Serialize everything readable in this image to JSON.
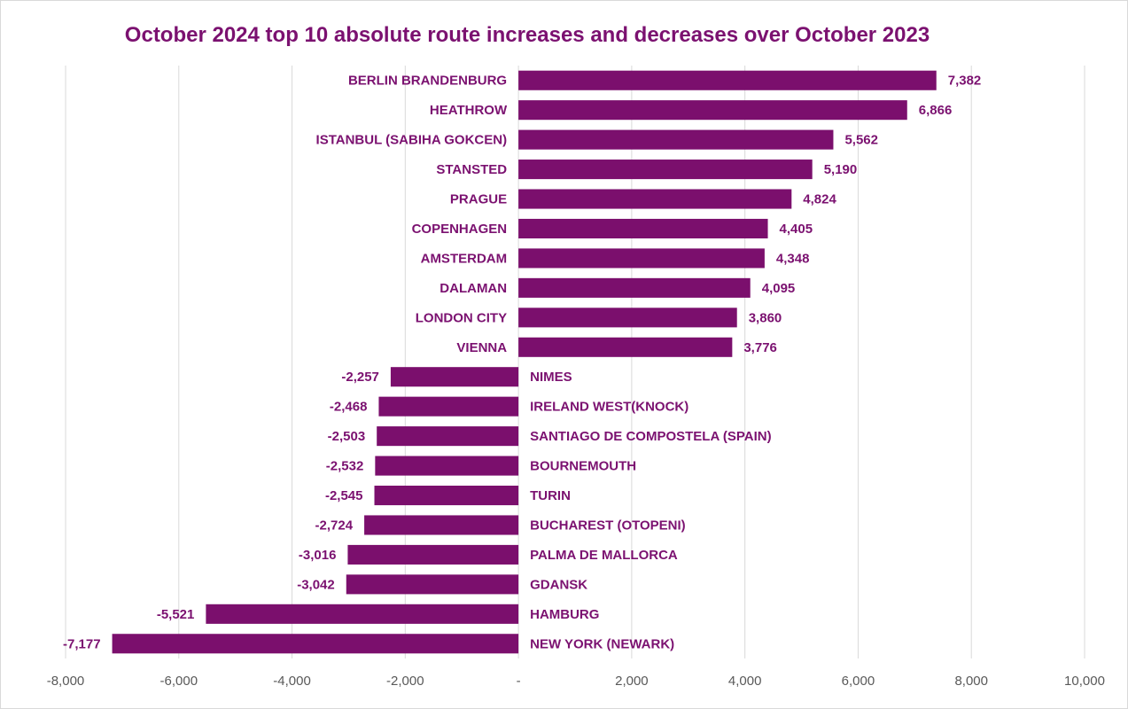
{
  "chart_data": {
    "type": "bar",
    "orientation": "horizontal",
    "title": "October 2024 top 10 absolute route increases and decreases over October 2023",
    "xlim": [
      -8000,
      10000
    ],
    "x_ticks": [
      -8000,
      -6000,
      -4000,
      -2000,
      0,
      2000,
      4000,
      6000,
      8000,
      10000
    ],
    "x_tick_labels": [
      "-8,000",
      "-6,000",
      "-4,000",
      "-2,000",
      "-",
      "2,000",
      "4,000",
      "6,000",
      "8,000",
      "10,000"
    ],
    "grid": true,
    "bar_color": "#7b0f6d",
    "categories": [
      "BERLIN BRANDENBURG",
      "HEATHROW",
      "ISTANBUL (SABIHA GOKCEN)",
      "STANSTED",
      "PRAGUE",
      "COPENHAGEN",
      "AMSTERDAM",
      "DALAMAN",
      "LONDON CITY",
      "VIENNA",
      "NIMES",
      "IRELAND WEST(KNOCK)",
      "SANTIAGO DE COMPOSTELA (SPAIN)",
      "BOURNEMOUTH",
      "TURIN",
      "BUCHAREST (OTOPENI)",
      "PALMA DE MALLORCA",
      "GDANSK",
      "HAMBURG",
      "NEW YORK (NEWARK)"
    ],
    "values": [
      7382,
      6866,
      5562,
      5190,
      4824,
      4405,
      4348,
      4095,
      3860,
      3776,
      -2257,
      -2468,
      -2503,
      -2532,
      -2545,
      -2724,
      -3016,
      -3042,
      -5521,
      -7177
    ],
    "value_labels": [
      "7,382",
      "6,866",
      "5,562",
      "5,190",
      "4,824",
      "4,405",
      "4,348",
      "4,095",
      "3,860",
      "3,776",
      "-2,257",
      "-2,468",
      "-2,503",
      "-2,532",
      "-2,545",
      "-2,724",
      "-3,016",
      "-3,042",
      "-5,521",
      "-7,177"
    ]
  }
}
